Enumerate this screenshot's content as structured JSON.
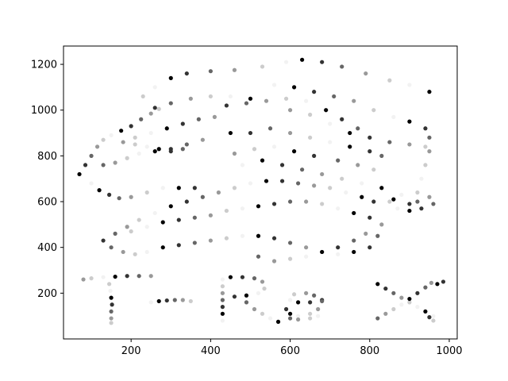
{
  "chart_data": {
    "type": "scatter",
    "title": "",
    "xlabel": "",
    "ylabel": "",
    "xlim": [
      30,
      1020
    ],
    "ylim": [
      0,
      1280
    ],
    "x_ticks": [
      200,
      400,
      600,
      800,
      1000
    ],
    "y_ticks": [
      200,
      400,
      600,
      800,
      1000,
      1200
    ],
    "x_tick_labels": [
      "200",
      "400",
      "600",
      "800",
      "1000"
    ],
    "y_tick_labels": [
      "200",
      "400",
      "600",
      "800",
      "1000",
      "1200"
    ],
    "grid": false,
    "legend": "none",
    "marker_colors": [
      "#000000",
      "#333333",
      "#666666",
      "#999999",
      "#cccccc",
      "#f2f2f2"
    ],
    "series": [
      {
        "values": [
          [
            70,
            720
          ],
          [
            85,
            760
          ],
          [
            100,
            800
          ],
          [
            115,
            840
          ],
          [
            130,
            870
          ],
          [
            150,
            890
          ],
          [
            175,
            910
          ],
          [
            200,
            930
          ],
          [
            225,
            960
          ],
          [
            250,
            985
          ],
          [
            270,
            1005
          ],
          [
            100,
            680
          ],
          [
            120,
            650
          ],
          [
            145,
            630
          ],
          [
            170,
            615
          ],
          [
            200,
            620
          ],
          [
            240,
            640
          ],
          [
            280,
            660
          ],
          [
            320,
            660
          ],
          [
            360,
            660
          ],
          [
            130,
            760
          ],
          [
            160,
            770
          ],
          [
            190,
            790
          ],
          [
            220,
            810
          ],
          [
            260,
            820
          ],
          [
            300,
            830
          ],
          [
            340,
            850
          ],
          [
            380,
            870
          ],
          [
            210,
            850
          ],
          [
            240,
            840
          ],
          [
            270,
            830
          ],
          [
            300,
            820
          ],
          [
            330,
            830
          ],
          [
            180,
            860
          ],
          [
            210,
            880
          ],
          [
            250,
            900
          ],
          [
            290,
            920
          ],
          [
            330,
            940
          ],
          [
            370,
            960
          ],
          [
            410,
            970
          ],
          [
            230,
            1060
          ],
          [
            260,
            1100
          ],
          [
            300,
            1140
          ],
          [
            340,
            1160
          ],
          [
            400,
            1170
          ],
          [
            460,
            1175
          ],
          [
            530,
            1190
          ],
          [
            590,
            1210
          ],
          [
            630,
            1220
          ],
          [
            680,
            1210
          ],
          [
            730,
            1190
          ],
          [
            790,
            1160
          ],
          [
            850,
            1130
          ],
          [
            900,
            1110
          ],
          [
            950,
            1080
          ],
          [
            260,
            1010
          ],
          [
            300,
            1030
          ],
          [
            350,
            1050
          ],
          [
            400,
            1060
          ],
          [
            450,
            1060
          ],
          [
            500,
            1050
          ],
          [
            440,
            1020
          ],
          [
            490,
            1030
          ],
          [
            540,
            1040
          ],
          [
            590,
            1050
          ],
          [
            640,
            1040
          ],
          [
            690,
            1000
          ],
          [
            730,
            960
          ],
          [
            770,
            920
          ],
          [
            600,
            1000
          ],
          [
            650,
            980
          ],
          [
            700,
            940
          ],
          [
            750,
            900
          ],
          [
            800,
            880
          ],
          [
            850,
            860
          ],
          [
            900,
            850
          ],
          [
            940,
            840
          ],
          [
            560,
            1110
          ],
          [
            610,
            1100
          ],
          [
            660,
            1080
          ],
          [
            710,
            1060
          ],
          [
            760,
            1040
          ],
          [
            810,
            1000
          ],
          [
            860,
            970
          ],
          [
            900,
            950
          ],
          [
            940,
            920
          ],
          [
            950,
            880
          ],
          [
            950,
            820
          ],
          [
            940,
            760
          ],
          [
            930,
            700
          ],
          [
            450,
            900
          ],
          [
            500,
            900
          ],
          [
            550,
            920
          ],
          [
            600,
            900
          ],
          [
            650,
            880
          ],
          [
            700,
            860
          ],
          [
            750,
            840
          ],
          [
            800,
            820
          ],
          [
            830,
            800
          ],
          [
            460,
            810
          ],
          [
            510,
            830
          ],
          [
            560,
            840
          ],
          [
            610,
            820
          ],
          [
            660,
            800
          ],
          [
            720,
            780
          ],
          [
            770,
            760
          ],
          [
            810,
            740
          ],
          [
            480,
            760
          ],
          [
            530,
            780
          ],
          [
            580,
            760
          ],
          [
            630,
            740
          ],
          [
            680,
            720
          ],
          [
            730,
            700
          ],
          [
            780,
            680
          ],
          [
            830,
            660
          ],
          [
            130,
            430
          ],
          [
            160,
            460
          ],
          [
            190,
            490
          ],
          [
            220,
            520
          ],
          [
            260,
            550
          ],
          [
            300,
            580
          ],
          [
            340,
            600
          ],
          [
            380,
            620
          ],
          [
            420,
            640
          ],
          [
            460,
            660
          ],
          [
            500,
            680
          ],
          [
            540,
            690
          ],
          [
            580,
            690
          ],
          [
            620,
            680
          ],
          [
            660,
            670
          ],
          [
            700,
            660
          ],
          [
            740,
            640
          ],
          [
            780,
            620
          ],
          [
            810,
            600
          ],
          [
            150,
            400
          ],
          [
            180,
            380
          ],
          [
            210,
            370
          ],
          [
            240,
            380
          ],
          [
            280,
            400
          ],
          [
            320,
            410
          ],
          [
            360,
            420
          ],
          [
            400,
            430
          ],
          [
            440,
            440
          ],
          [
            480,
            450
          ],
          [
            520,
            450
          ],
          [
            560,
            440
          ],
          [
            600,
            420
          ],
          [
            640,
            400
          ],
          [
            680,
            380
          ],
          [
            720,
            370
          ],
          [
            760,
            380
          ],
          [
            800,
            400
          ],
          [
            820,
            450
          ],
          [
            830,
            500
          ],
          [
            200,
            470
          ],
          [
            240,
            490
          ],
          [
            280,
            510
          ],
          [
            320,
            520
          ],
          [
            360,
            530
          ],
          [
            400,
            540
          ],
          [
            440,
            560
          ],
          [
            480,
            570
          ],
          [
            520,
            580
          ],
          [
            560,
            590
          ],
          [
            600,
            600
          ],
          [
            640,
            600
          ],
          [
            680,
            590
          ],
          [
            720,
            570
          ],
          [
            760,
            550
          ],
          [
            800,
            530
          ],
          [
            520,
            360
          ],
          [
            560,
            340
          ],
          [
            600,
            350
          ],
          [
            640,
            360
          ],
          [
            680,
            380
          ],
          [
            720,
            400
          ],
          [
            760,
            430
          ],
          [
            790,
            460
          ],
          [
            850,
            600
          ],
          [
            870,
            570
          ],
          [
            900,
            560
          ],
          [
            930,
            570
          ],
          [
            960,
            590
          ],
          [
            950,
            620
          ],
          [
            920,
            640
          ],
          [
            880,
            630
          ],
          [
            860,
            610
          ],
          [
            900,
            590
          ],
          [
            920,
            600
          ],
          [
            80,
            260
          ],
          [
            100,
            265
          ],
          [
            130,
            270
          ],
          [
            160,
            272
          ],
          [
            190,
            275
          ],
          [
            220,
            275
          ],
          [
            250,
            275
          ],
          [
            145,
            240
          ],
          [
            148,
            210
          ],
          [
            150,
            180
          ],
          [
            152,
            150
          ],
          [
            150,
            120
          ],
          [
            150,
            90
          ],
          [
            150,
            70
          ],
          [
            250,
            160
          ],
          [
            270,
            165
          ],
          [
            290,
            168
          ],
          [
            310,
            170
          ],
          [
            330,
            170
          ],
          [
            350,
            165
          ],
          [
            430,
            80
          ],
          [
            430,
            110
          ],
          [
            430,
            140
          ],
          [
            430,
            170
          ],
          [
            430,
            200
          ],
          [
            430,
            230
          ],
          [
            430,
            260
          ],
          [
            450,
            270
          ],
          [
            480,
            270
          ],
          [
            510,
            265
          ],
          [
            530,
            250
          ],
          [
            535,
            220
          ],
          [
            520,
            200
          ],
          [
            490,
            190
          ],
          [
            460,
            185
          ],
          [
            490,
            160
          ],
          [
            510,
            130
          ],
          [
            530,
            110
          ],
          [
            550,
            90
          ],
          [
            570,
            75
          ],
          [
            680,
            170
          ],
          [
            660,
            190
          ],
          [
            640,
            200
          ],
          [
            610,
            195
          ],
          [
            600,
            170
          ],
          [
            620,
            160
          ],
          [
            650,
            160
          ],
          [
            680,
            165
          ],
          [
            670,
            130
          ],
          [
            650,
            110
          ],
          [
            620,
            100
          ],
          [
            600,
            110
          ],
          [
            590,
            130
          ],
          [
            600,
            90
          ],
          [
            620,
            85
          ],
          [
            650,
            90
          ],
          [
            670,
            100
          ],
          [
            820,
            240
          ],
          [
            840,
            220
          ],
          [
            860,
            200
          ],
          [
            880,
            180
          ],
          [
            900,
            160
          ],
          [
            920,
            140
          ],
          [
            940,
            120
          ],
          [
            950,
            95
          ],
          [
            820,
            90
          ],
          [
            840,
            110
          ],
          [
            860,
            130
          ],
          [
            880,
            150
          ],
          [
            900,
            175
          ],
          [
            920,
            200
          ],
          [
            940,
            225
          ],
          [
            955,
            245
          ],
          [
            960,
            80
          ],
          [
            960,
            100
          ],
          [
            970,
            240
          ],
          [
            985,
            250
          ]
        ]
      }
    ]
  }
}
